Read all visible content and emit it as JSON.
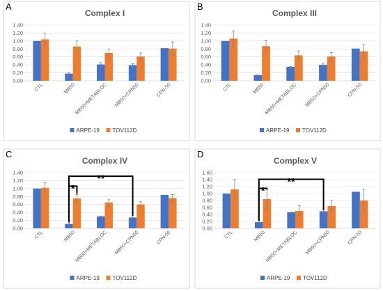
{
  "colors": {
    "series_a": "#4472C4",
    "series_b": "#ED7D31",
    "grid": "#d9d9d9",
    "error": "#7f7f7f",
    "bracket": "#000000"
  },
  "chart_data": [
    {
      "type": "bar",
      "panel_label": "A",
      "title": "Complex I",
      "categories": [
        "CTL",
        "MB50",
        "MB50+METABLOC",
        "MB50+CPN50",
        "CPN-50"
      ],
      "ylim": [
        0,
        1.4
      ],
      "yticks": [
        "0.00",
        "0.20",
        "0.40",
        "0.60",
        "0.80",
        "1.00",
        "1.20",
        "1.40"
      ],
      "series": [
        {
          "name": "ARPE-19",
          "values": [
            1.0,
            0.18,
            0.41,
            0.39,
            0.82
          ],
          "errors": [
            0,
            0.03,
            0.05,
            0.04,
            0.0
          ]
        },
        {
          "name": "TOV112D",
          "values": [
            1.04,
            0.86,
            0.7,
            0.61,
            0.81
          ],
          "errors": [
            0.16,
            0.14,
            0.1,
            0.09,
            0.17
          ]
        }
      ],
      "grid": true,
      "legend": "bottom",
      "brackets": []
    },
    {
      "type": "bar",
      "panel_label": "B",
      "title": "Complex III",
      "categories": [
        "CTL",
        "MB50",
        "MB50+METABLOC",
        "MB50+CPN50",
        "CPN-50"
      ],
      "ylim": [
        0,
        1.4
      ],
      "yticks": [
        "0.00",
        "0.20",
        "0.40",
        "0.60",
        "0.80",
        "1.00",
        "1.20",
        "1.40"
      ],
      "series": [
        {
          "name": "ARPE-19",
          "values": [
            1.0,
            0.14,
            0.35,
            0.4,
            0.81
          ],
          "errors": [
            0,
            0.01,
            0.01,
            0.04,
            0.0
          ]
        },
        {
          "name": "TOV112D",
          "values": [
            1.06,
            0.87,
            0.64,
            0.61,
            0.74
          ],
          "errors": [
            0.19,
            0.14,
            0.11,
            0.1,
            0.17
          ]
        }
      ],
      "grid": true,
      "legend": "bottom",
      "brackets": []
    },
    {
      "type": "bar",
      "panel_label": "C",
      "title": "Complex IV",
      "categories": [
        "CTL",
        "MB50",
        "MB50+METABLOC",
        "MB50+CPN50",
        "CPN-50"
      ],
      "ylim": [
        0,
        1.4
      ],
      "yticks": [
        "0.00",
        "0.20",
        "0.40",
        "0.60",
        "0.80",
        "1.00",
        "1.20",
        "1.40"
      ],
      "series": [
        {
          "name": "ARPE-19",
          "values": [
            1.0,
            0.11,
            0.3,
            0.27,
            0.84
          ],
          "errors": [
            0,
            0.02,
            0.01,
            0.01,
            0.0
          ]
        },
        {
          "name": "TOV112D",
          "values": [
            1.02,
            0.75,
            0.65,
            0.6,
            0.76
          ],
          "errors": [
            0.13,
            0.1,
            0.07,
            0.07,
            0.09
          ]
        }
      ],
      "grid": true,
      "legend": "bottom",
      "brackets": [
        {
          "from": 1,
          "to": 1,
          "label": "*",
          "level": 1.06
        },
        {
          "from": 1,
          "to": 3,
          "label": "**",
          "level": 1.31
        }
      ]
    },
    {
      "type": "bar",
      "panel_label": "D",
      "title": "Complex V",
      "categories": [
        "CTL",
        "MB50",
        "MB50+METABLOC",
        "MB50+CPN50",
        "CPN-50"
      ],
      "ylim": [
        0,
        1.6
      ],
      "yticks": [
        "0.00",
        "0.20",
        "0.40",
        "0.60",
        "0.80",
        "1.00",
        "1.20",
        "1.40",
        "1.60"
      ],
      "series": [
        {
          "name": "ARPE-19",
          "values": [
            1.0,
            0.18,
            0.46,
            0.49,
            1.05
          ],
          "errors": [
            0,
            0.02,
            0.01,
            0.04,
            0.0
          ]
        },
        {
          "name": "TOV112D",
          "values": [
            1.12,
            0.84,
            0.5,
            0.64,
            0.8
          ],
          "errors": [
            0.28,
            0.27,
            0.15,
            0.16,
            0.32
          ]
        }
      ],
      "grid": true,
      "legend": "bottom",
      "brackets": [
        {
          "from": 1,
          "to": 1,
          "label": "*",
          "level": 1.15
        },
        {
          "from": 1,
          "to": 3,
          "label": "**",
          "level": 1.41
        }
      ]
    }
  ]
}
